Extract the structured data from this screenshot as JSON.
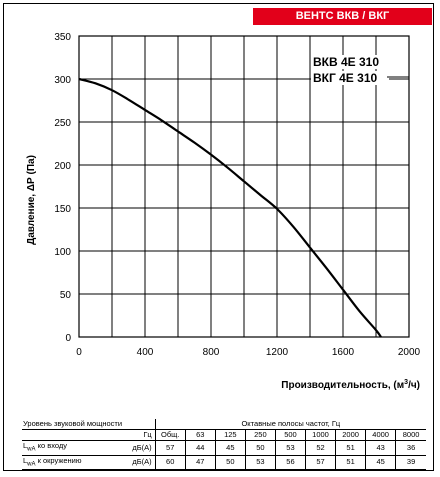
{
  "banner": "ВЕНТС ВКВ / ВКГ",
  "chart_data": {
    "type": "line",
    "ylabel": "Давление, ΔР (Па)",
    "xlabel": "Производительность, (м³/ч)",
    "xlim": [
      0,
      2000
    ],
    "ylim": [
      0,
      350
    ],
    "xticks": [
      0,
      400,
      800,
      1200,
      1600,
      2000
    ],
    "yticks": [
      0,
      50,
      100,
      150,
      200,
      250,
      300,
      350
    ],
    "xgrid_step": 200,
    "ygrid_step": 50,
    "grid": true,
    "models": [
      "ВКВ 4Е 310",
      "ВКГ 4Е 310"
    ],
    "series": [
      {
        "x": [
          0,
          100,
          200,
          300,
          400,
          500,
          600,
          700,
          800,
          900,
          1000,
          1100,
          1200,
          1300,
          1400,
          1500,
          1600,
          1700,
          1800,
          1830
        ],
        "y": [
          300,
          295,
          287,
          276,
          264,
          252,
          239,
          226,
          212,
          197,
          181,
          165,
          149,
          128,
          104,
          80,
          55,
          30,
          8,
          0
        ]
      }
    ]
  },
  "sound_table": {
    "title": "Уровень звуковой мощности",
    "bands_title": "Октавные полосы частот, Гц",
    "unit_hz": "Гц",
    "total_label": "Общ.",
    "bands": [
      "63",
      "125",
      "250",
      "500",
      "1000",
      "2000",
      "4000",
      "8000"
    ],
    "rows": [
      {
        "label": "L",
        "sub": "wA",
        "label_rest": " ко входу",
        "unit": "дБ(А)",
        "total": "57",
        "values": [
          "44",
          "45",
          "50",
          "53",
          "52",
          "51",
          "43",
          "36"
        ]
      },
      {
        "label": "L",
        "sub": "wA",
        "label_rest": " к окружению",
        "unit": "дБ(А)",
        "total": "60",
        "values": [
          "47",
          "50",
          "53",
          "56",
          "57",
          "51",
          "45",
          "39"
        ]
      }
    ]
  }
}
